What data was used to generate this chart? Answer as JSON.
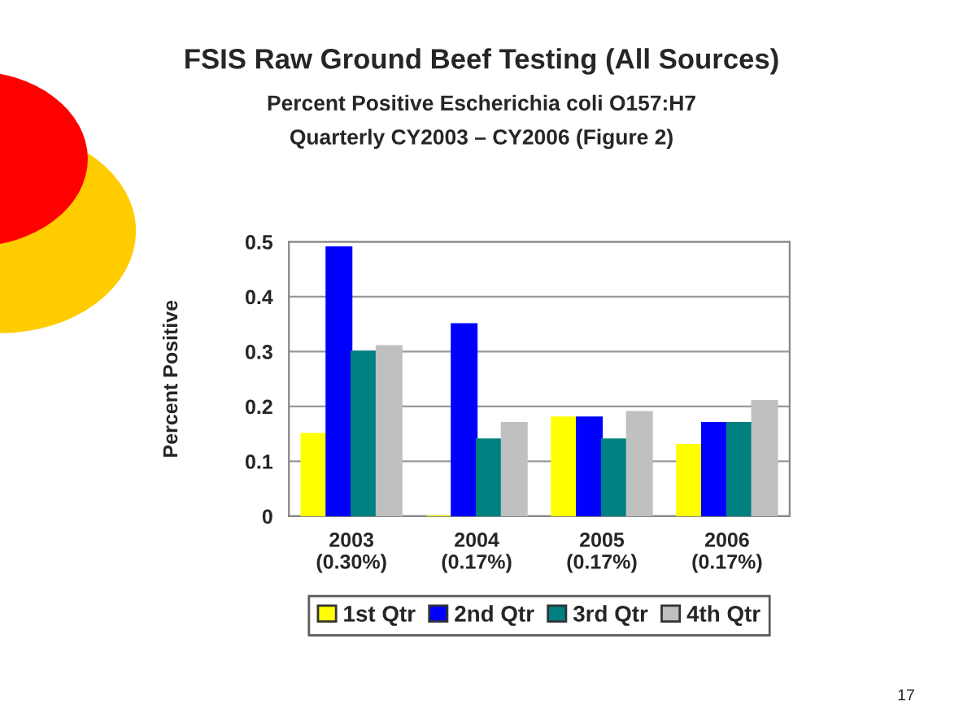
{
  "chart_data": {
    "type": "bar",
    "title": "FSIS Raw Ground Beef Testing (All Sources)",
    "subtitle": "Percent Positive Escherichia coli O157:H7\nQuarterly CY2003 – CY2006 (Figure 2)",
    "ylabel": "Percent Positive",
    "categories": [
      "2003\n(0.30%)",
      "2004\n(0.17%)",
      "2005\n(0.17%)",
      "2006\n(0.17%)"
    ],
    "series": [
      {
        "name": "1st Qtr",
        "color": "#ffff00",
        "values": [
          0.15,
          0,
          0.18,
          0.13
        ]
      },
      {
        "name": "2nd Qtr",
        "color": "#0000ff",
        "values": [
          0.49,
          0.35,
          0.18,
          0.17
        ]
      },
      {
        "name": "3rd Qtr",
        "color": "#008080",
        "values": [
          0.3,
          0.14,
          0.14,
          0.17
        ]
      },
      {
        "name": "4th Qtr",
        "color": "#c0c0c0",
        "values": [
          0.31,
          0.17,
          0.19,
          0.21
        ]
      }
    ],
    "ylim": [
      0,
      0.5
    ],
    "yticks": [
      0,
      0.1,
      0.2,
      0.3,
      0.4,
      0.5
    ],
    "grid": "y",
    "legend": "bottom",
    "annotations": [
      "17"
    ]
  }
}
